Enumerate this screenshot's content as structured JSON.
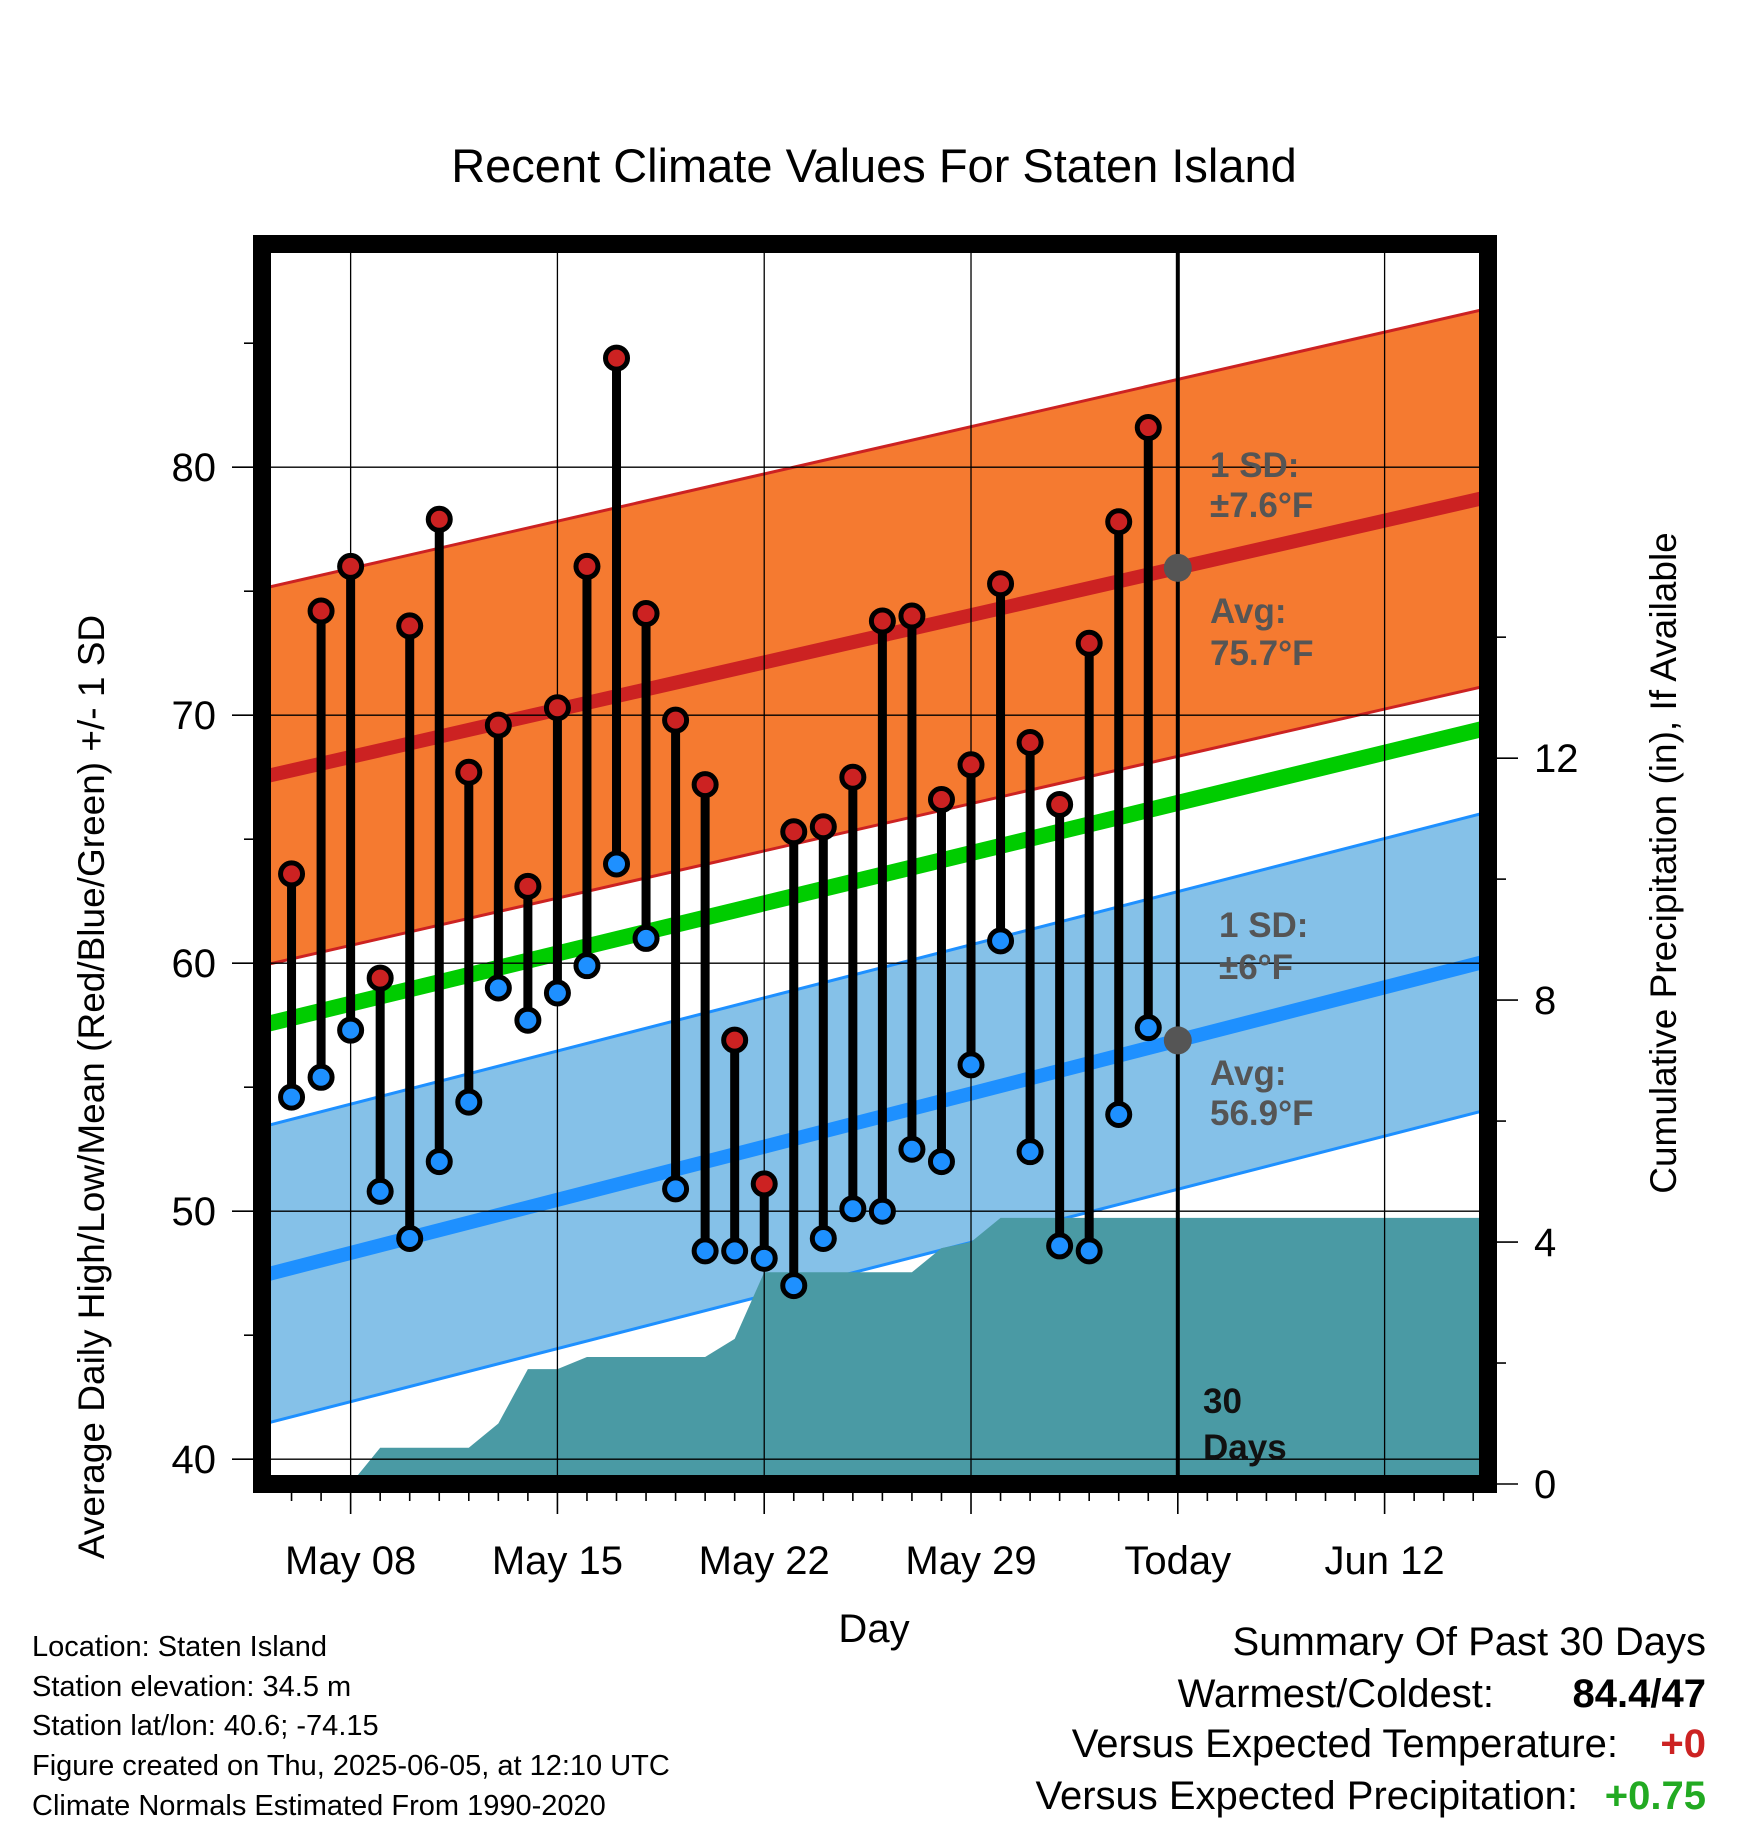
{
  "chart_data": {
    "type": "scatter",
    "title": "Recent Climate Values For Staten Island",
    "xlabel": "Day",
    "ylabel": "Average Daily High/Low/Mean (Red/Blue/Green) +/- 1 SD",
    "y2label": "Cumulative Precipitation (in), If Available",
    "xlim_days_from_may08": [
      -3,
      38.5
    ],
    "ylim": [
      39,
      89
    ],
    "y2lim": [
      0,
      20.5
    ],
    "x_tick_labels": [
      "May 08",
      "May 15",
      "May 22",
      "May 29",
      "Today",
      "Jun 12"
    ],
    "x_tick_days": [
      0,
      7,
      14,
      21,
      28,
      35
    ],
    "y_ticks": [
      40,
      50,
      60,
      70,
      80
    ],
    "y2_ticks": [
      0,
      4,
      8,
      12
    ],
    "grid": true,
    "series": [
      {
        "name": "",
        "color": "#cc2222",
        "days": [
          -2,
          -1,
          0,
          1,
          2,
          3,
          4,
          5,
          6,
          7,
          8,
          9,
          10,
          11,
          12,
          13,
          14,
          15,
          16,
          17,
          18,
          19,
          20,
          21,
          22,
          23,
          24,
          25,
          26,
          27
        ],
        "values": [
          63.6,
          74.2,
          76.0,
          59.4,
          73.6,
          77.9,
          67.7,
          69.6,
          63.1,
          70.3,
          76.0,
          84.4,
          74.1,
          69.8,
          67.2,
          56.9,
          51.1,
          65.3,
          65.5,
          67.5,
          73.8,
          74.0,
          66.6,
          68.0,
          75.3,
          68.9,
          66.4,
          72.9,
          77.8,
          81.6
        ]
      },
      {
        "name": "",
        "color": "#1e90ff",
        "days": [
          -2,
          -1,
          0,
          1,
          2,
          3,
          4,
          5,
          6,
          7,
          8,
          9,
          10,
          11,
          12,
          13,
          14,
          15,
          16,
          17,
          18,
          19,
          20,
          21,
          22,
          23,
          24,
          25,
          26,
          27
        ],
        "values": [
          54.6,
          55.4,
          57.3,
          50.8,
          48.9,
          52.0,
          54.4,
          59.0,
          57.7,
          58.8,
          59.9,
          64.0,
          61.0,
          50.9,
          48.4,
          48.4,
          48.1,
          47.0,
          48.9,
          50.1,
          50.0,
          52.5,
          52.0,
          55.9,
          60.9,
          52.4,
          48.6,
          48.4,
          53.9,
          57.4
        ]
      },
      {
        "name": "",
        "color": "#00cc00",
        "band": false,
        "start": [
          -3,
          57.5
        ],
        "end": [
          38.5,
          69.5
        ]
      },
      {
        "name": "",
        "color": "#f57a30",
        "avg_line_color": "#cc2222",
        "avg_start": [
          -3,
          67.5
        ],
        "avg_end": [
          38.5,
          78.8
        ],
        "sd": 7.6
      },
      {
        "name": "",
        "color": "#85c1e8",
        "avg_line_color": "#1e90ff",
        "avg_start": [
          -3,
          47.4
        ],
        "avg_end": [
          38.5,
          60.1
        ],
        "sd": 6.0
      },
      {
        "name": "",
        "color": "#4a9aa4",
        "days": [
          -3,
          0,
          1,
          4,
          5,
          6,
          7,
          8,
          9,
          10,
          11,
          12,
          13,
          14,
          15,
          16,
          17,
          18,
          19,
          20,
          21,
          22,
          23,
          24,
          25,
          26,
          27,
          28,
          38.5
        ],
        "precip_in": [
          0,
          0,
          0.6,
          0.6,
          1.0,
          1.9,
          1.9,
          2.1,
          2.1,
          2.1,
          2.1,
          2.1,
          2.4,
          3.5,
          3.5,
          3.5,
          3.5,
          3.5,
          3.5,
          3.9,
          4.0,
          4.4,
          4.4,
          4.4,
          4.4,
          4.4,
          4.4,
          4.4,
          4.4
        ]
      }
    ]
  },
  "annotations": {
    "high_sd_label": "1 SD:",
    "high_sd_value": "±7.6°F",
    "high_avg_label": "Avg:",
    "high_avg_value": "75.7°F",
    "low_sd_label": "1 SD:",
    "low_sd_value": "±6°F",
    "low_avg_label": "Avg:",
    "low_avg_value": "56.9°F",
    "days_number": "30",
    "days_word": "Days"
  },
  "colors": {
    "dot_today": "#555555",
    "annotation_text": "#555555",
    "warm_value": "#cc2222",
    "wet_value": "#22aa22"
  },
  "info": {
    "location": "Location: Staten Island",
    "elevation": "Station elevation: 34.5 m",
    "latlon": "Station lat/lon: 40.6; -74.15",
    "created": "Figure created on Thu, 2025-06-05, at 12:10 UTC",
    "normals": "Climate Normals Estimated From 1990-2020"
  },
  "summary": {
    "heading": "Summary Of Past 30 Days",
    "warm_cold_label": "Warmest/Coldest:",
    "warm_cold_value": "84.4/47",
    "temp_label": "Versus Expected Temperature:",
    "temp_value": "+0",
    "precip_label": "Versus Expected Precipitation:",
    "precip_value": "+0.75"
  }
}
